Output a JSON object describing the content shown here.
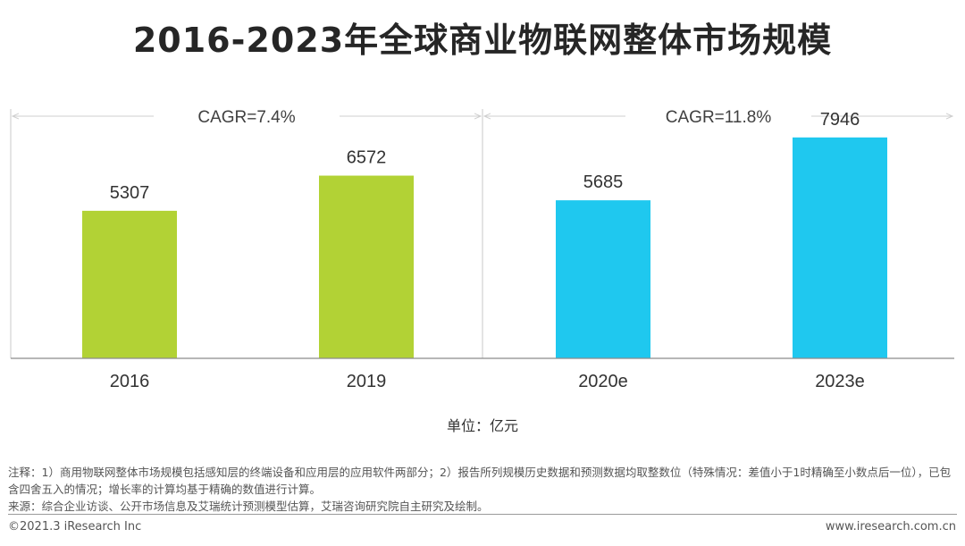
{
  "chart_data": {
    "type": "bar",
    "title": "2016-2023年全球商业物联网整体市场规模",
    "categories": [
      "2016",
      "2019",
      "2020e",
      "2023e"
    ],
    "values": [
      5307,
      6572,
      5685,
      7946
    ],
    "colors": [
      "#b2d235",
      "#b2d235",
      "#1fc8ef",
      "#1fc8ef"
    ],
    "ylim": [
      0,
      9000
    ],
    "grid": false,
    "unit_label": "单位：亿元",
    "cagr": [
      {
        "label": "CAGR=7.4%",
        "from": "2016",
        "to": "2019"
      },
      {
        "label": "CAGR=11.8%",
        "from": "2020e",
        "to": "2023e"
      }
    ]
  },
  "notes": {
    "line1": "注释：1）商用物联网整体市场规模包括感知层的终端设备和应用层的应用软件两部分；2）报告所列规模历史数据和预测数据均取整数位（特殊情况：差值小于1时精确至小数点后一位），已包含四舍五入的情况；增长率的计算均基于精确的数值进行计算。",
    "line2": "来源：综合企业访谈、公开市场信息及艾瑞统计预测模型估算，艾瑞咨询研究院自主研究及绘制。"
  },
  "footer": {
    "copyright": "©2021.3 iResearch Inc",
    "website": "www.iresearch.com.cn"
  }
}
